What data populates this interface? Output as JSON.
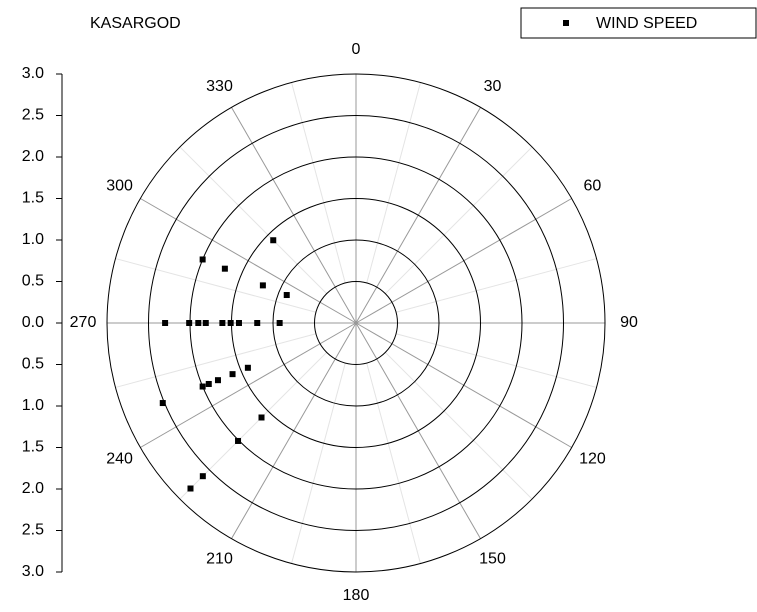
{
  "chart_data": {
    "type": "polar-scatter",
    "title": "KASARGOD",
    "ylim": [
      0,
      3
    ],
    "yticks": [
      {
        "value": 3,
        "label": "3.0"
      },
      {
        "value": 2.5,
        "label": "2.5"
      },
      {
        "value": 2,
        "label": "2.0"
      },
      {
        "value": 1.5,
        "label": "1.5"
      },
      {
        "value": 1,
        "label": "1.0"
      },
      {
        "value": 0.5,
        "label": "0.5"
      },
      {
        "value": 0,
        "label": "0.0"
      },
      {
        "value": 0.5,
        "label": "0.5"
      },
      {
        "value": 1,
        "label": "1.0"
      },
      {
        "value": 1.5,
        "label": "1.5"
      },
      {
        "value": 2,
        "label": "2.0"
      },
      {
        "value": 2.5,
        "label": "2.5"
      },
      {
        "value": 3,
        "label": "3.0"
      }
    ],
    "thetaticks": [
      0,
      30,
      60,
      90,
      120,
      150,
      180,
      210,
      240,
      270,
      300,
      330
    ],
    "grid": true,
    "legend": "top-right",
    "series": [
      {
        "name": "WIND SPEED",
        "color": "#000000",
        "theta": [
          315,
          292,
          292,
          292.5,
          292.5,
          270,
          270,
          270,
          270,
          270,
          270,
          270,
          270,
          270,
          247.5,
          247.5,
          247.5,
          247.5,
          247.5,
          247.5,
          225,
          225,
          225,
          225
        ],
        "values": [
          1.41,
          0.9,
          1.21,
          1.71,
          2.0,
          0.92,
          1.19,
          1.41,
          1.51,
          1.61,
          1.81,
          1.9,
          2.01,
          2.3,
          1.41,
          1.61,
          1.8,
          1.92,
          2.0,
          2.52,
          1.61,
          2.01,
          2.61,
          2.82
        ]
      }
    ]
  }
}
